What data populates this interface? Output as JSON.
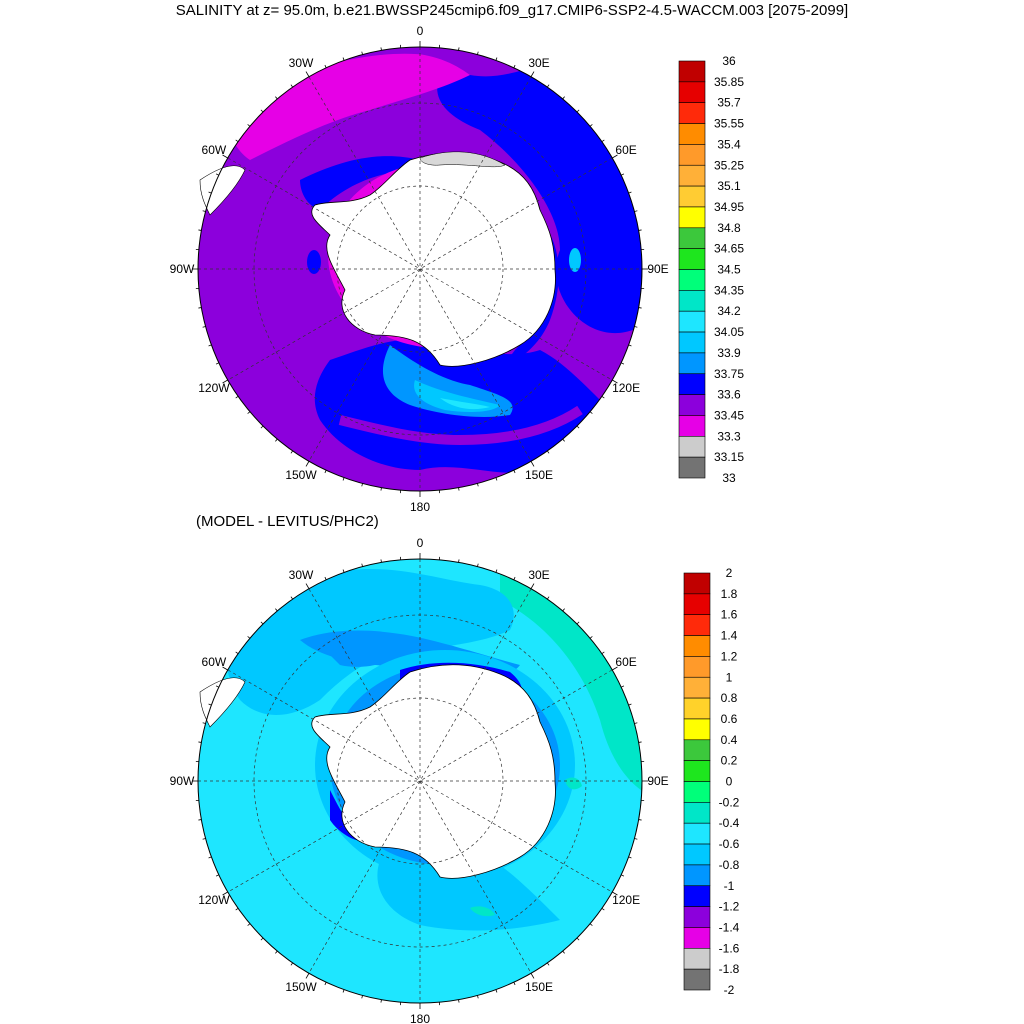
{
  "title": "SALINITY at z=  95.0m, b.e21.BWSSP245cmip6.f09_g17.CMIP6-SSP2-4.5-WACCM.003 [2075-2099]",
  "subtitle": "(MODEL - LEVITUS/PHC2)",
  "longitude_labels": [
    "0",
    "30E",
    "60E",
    "90E",
    "120E",
    "150E",
    "180",
    "150W",
    "120W",
    "90W",
    "60W",
    "30W"
  ],
  "colors": {
    "land": "#ffffff",
    "ice_shelf": "#d8d8d8",
    "coast": "#000000"
  },
  "panels": [
    {
      "name": "salinity",
      "colorbar": {
        "labels": [
          "36",
          "35.85",
          "35.7",
          "35.55",
          "35.4",
          "35.25",
          "35.1",
          "34.95",
          "34.8",
          "34.65",
          "34.5",
          "34.35",
          "34.2",
          "34.05",
          "33.9",
          "33.75",
          "33.6",
          "33.45",
          "33.3",
          "33.15",
          "33"
        ],
        "colors": [
          "#c00000",
          "#e60000",
          "#ff2a0a",
          "#ff8c00",
          "#ff9a2a",
          "#ffb038",
          "#ffcc33",
          "#ffff00",
          "#3cc83c",
          "#1ee61e",
          "#00ff7a",
          "#00e6c8",
          "#1ee6ff",
          "#00c8ff",
          "#0096ff",
          "#0000ff",
          "#8c00dc",
          "#e600e6",
          "#cccccc",
          "#737373"
        ]
      }
    },
    {
      "name": "difference",
      "colorbar": {
        "labels": [
          "2",
          "1.8",
          "1.6",
          "1.4",
          "1.2",
          "1",
          "0.8",
          "0.6",
          "0.4",
          "0.2",
          "0",
          "-0.2",
          "-0.4",
          "-0.6",
          "-0.8",
          "-1",
          "-1.2",
          "-1.4",
          "-1.6",
          "-1.8",
          "-2"
        ],
        "colors": [
          "#c00000",
          "#e60000",
          "#ff2a0a",
          "#ff8c00",
          "#ff9a2a",
          "#ffb038",
          "#ffd22a",
          "#ffff00",
          "#3cc83c",
          "#1ee61e",
          "#00ff7a",
          "#00e6c8",
          "#1ee6ff",
          "#00c8ff",
          "#0096ff",
          "#0000ff",
          "#8c00dc",
          "#e600e6",
          "#cccccc",
          "#737373"
        ]
      }
    }
  ]
}
